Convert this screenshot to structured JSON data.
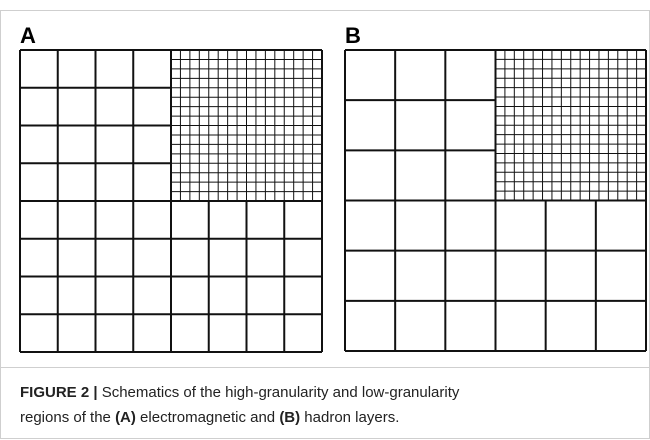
{
  "panels": [
    {
      "label": "A"
    },
    {
      "label": "B"
    }
  ],
  "caption": {
    "lines": [
      [
        "FIGURE 2 |",
        " Schematics of the high-granularity and low-granularity"
      ],
      [
        "regions of the ",
        "(A)",
        " electromagnetic and ",
        "(B)",
        " hadron layers."
      ]
    ]
  }
}
